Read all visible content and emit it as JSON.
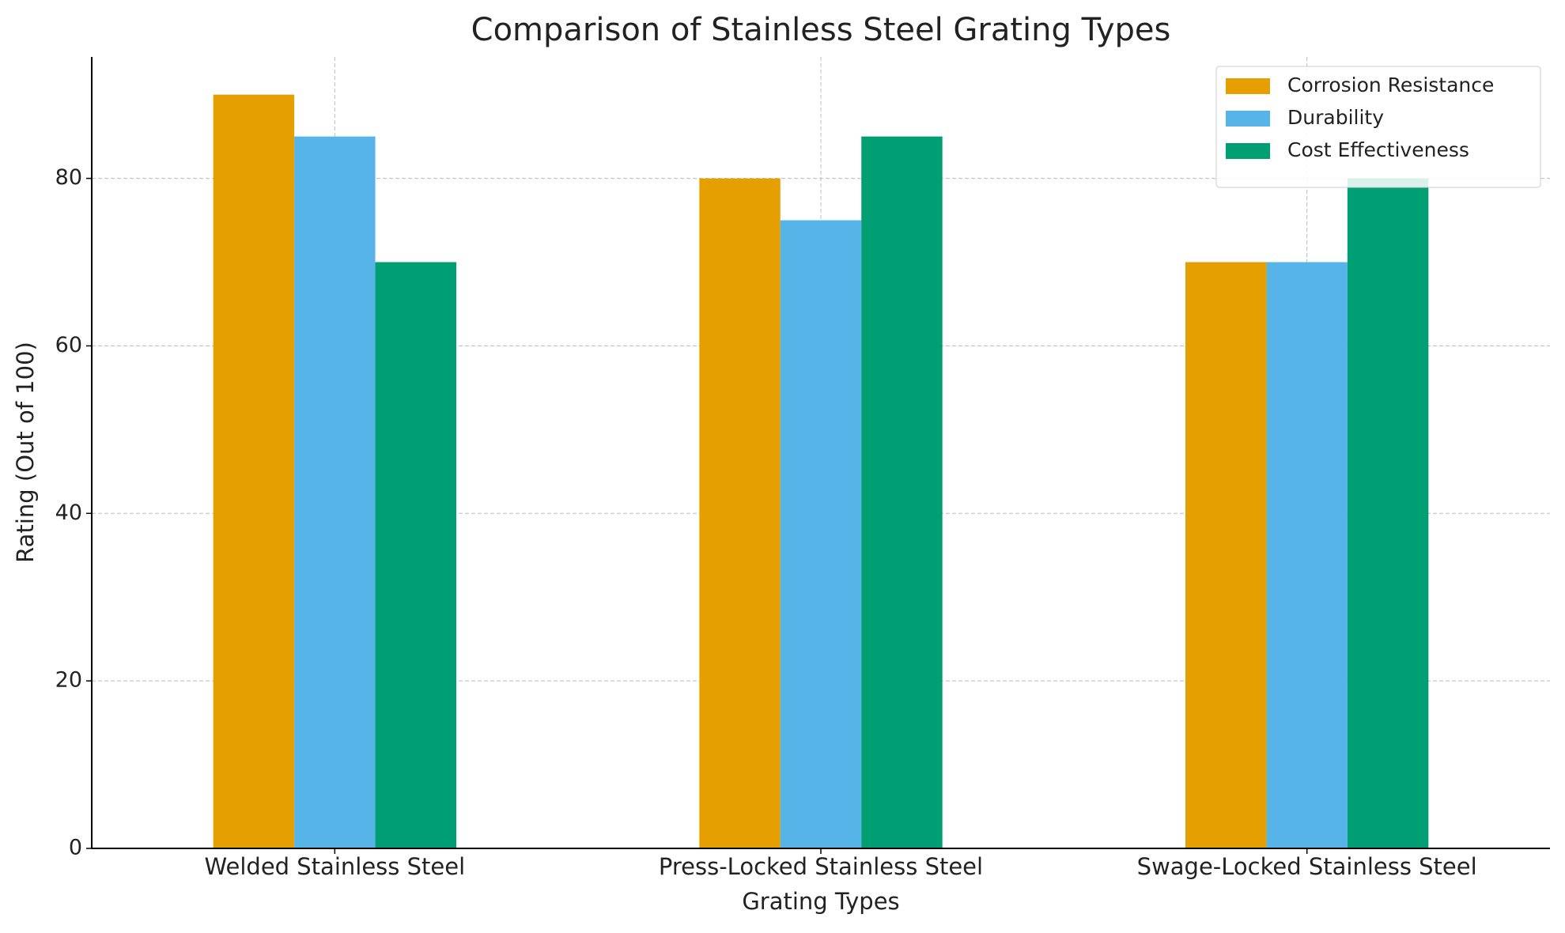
{
  "chart_data": {
    "type": "bar",
    "title": "Comparison of Stainless Steel Grating Types",
    "x_label": "Grating Types",
    "y_label": "Rating (Out of 100)",
    "categories": [
      "Welded Stainless Steel",
      "Press-Locked Stainless Steel",
      "Swage-Locked Stainless Steel"
    ],
    "series": [
      {
        "name": "Corrosion Resistance",
        "color": "#e69f00",
        "values": [
          90,
          80,
          70
        ]
      },
      {
        "name": "Durability",
        "color": "#56b4e9",
        "values": [
          85,
          75,
          70
        ]
      },
      {
        "name": "Cost Effectiveness",
        "color": "#009e73",
        "values": [
          70,
          85,
          80
        ]
      }
    ],
    "ylim": [
      0,
      94.5
    ],
    "yticks": [
      0,
      20,
      40,
      60,
      80
    ],
    "grid": true,
    "legend": "upper right"
  }
}
